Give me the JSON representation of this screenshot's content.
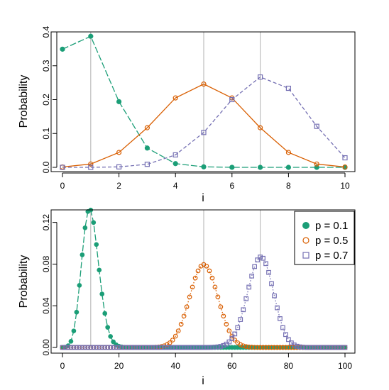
{
  "colors": {
    "p01": "#1b9e77",
    "p05": "#d95f02",
    "p07": "#7570b3",
    "vline": "#bebebe",
    "axis": "#000000"
  },
  "chart_data": [
    {
      "type": "line",
      "title": "",
      "xlabel": "i",
      "ylabel": "Probability",
      "xlim": [
        0,
        10
      ],
      "ylim": [
        0,
        0.4
      ],
      "x_ticks": [
        "0",
        "2",
        "4",
        "6",
        "8",
        "10"
      ],
      "y_ticks": [
        "0.0",
        "0.1",
        "0.2",
        "0.3",
        "0.4"
      ],
      "reference_lines_x": [
        1,
        5,
        7
      ],
      "x": [
        0,
        1,
        2,
        3,
        4,
        5,
        6,
        7,
        8,
        9,
        10
      ],
      "series": [
        {
          "name": "p = 0.1",
          "marker": "filled-circle",
          "line": "longdash",
          "values": [
            0.349,
            0.387,
            0.194,
            0.057,
            0.011,
            0.0015,
            0.0001,
            0.0,
            0.0,
            0.0,
            0.0
          ]
        },
        {
          "name": "p = 0.5",
          "marker": "open-circle",
          "line": "solid",
          "values": [
            0.001,
            0.0098,
            0.044,
            0.117,
            0.205,
            0.246,
            0.205,
            0.117,
            0.044,
            0.0098,
            0.001
          ]
        },
        {
          "name": "p = 0.7",
          "marker": "open-square",
          "line": "dashed",
          "values": [
            0.0,
            0.0001,
            0.0014,
            0.009,
            0.0368,
            0.103,
            0.2001,
            0.2668,
            0.2335,
            0.1211,
            0.0282
          ]
        }
      ]
    },
    {
      "type": "line",
      "title": "",
      "xlabel": "i",
      "ylabel": "Probability",
      "xlim": [
        0,
        100
      ],
      "ylim": [
        0,
        0.132
      ],
      "x_ticks": [
        "0",
        "20",
        "40",
        "60",
        "80",
        "100"
      ],
      "y_ticks": [
        "0.00",
        "0.04",
        "0.08",
        "0.12"
      ],
      "reference_lines_x": [
        10,
        50,
        70
      ],
      "legend": {
        "position": "top-right",
        "entries": [
          "p = 0.1",
          "p = 0.5",
          "p = 0.7"
        ]
      },
      "x_range": [
        0,
        100
      ],
      "series": [
        {
          "name": "p = 0.1",
          "marker": "filled-circle",
          "line": "longdash",
          "n": 100,
          "p": 0.1
        },
        {
          "name": "p = 0.5",
          "marker": "open-circle",
          "line": "dotted",
          "n": 100,
          "p": 0.5
        },
        {
          "name": "p = 0.7",
          "marker": "open-square",
          "line": "dotted",
          "n": 100,
          "p": 0.7
        }
      ]
    }
  ]
}
